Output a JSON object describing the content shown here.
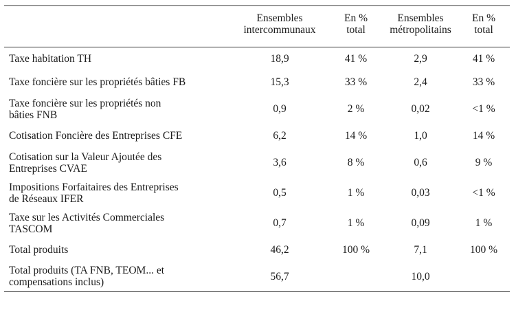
{
  "table": {
    "headers": {
      "col0": "",
      "col1_line1": "Ensembles",
      "col1_line2": "intercommunaux",
      "col2_line1": "En %",
      "col2_line2": "total",
      "col3_line1": "Ensembles",
      "col3_line2": "métropolitains",
      "col4_line1": "En %",
      "col4_line2": "total"
    },
    "rows": [
      {
        "label_line1": "Taxe habitation TH",
        "label_line2": "",
        "interco": "18,9",
        "interco_pct": "41 %",
        "metro": "2,9",
        "metro_pct": "41 %"
      },
      {
        "label_line1": "Taxe foncière sur les propriétés bâties FB",
        "label_line2": "",
        "interco": "15,3",
        "interco_pct": "33 %",
        "metro": "2,4",
        "metro_pct": "33 %"
      },
      {
        "label_line1": "Taxe foncière sur les propriétés non",
        "label_line2": "bâties FNB",
        "interco": "0,9",
        "interco_pct": "2 %",
        "metro": "0,02",
        "metro_pct": "<1 %"
      },
      {
        "label_line1": "Cotisation Foncière des Entreprises CFE",
        "label_line2": "",
        "interco": "6,2",
        "interco_pct": "14 %",
        "metro": "1,0",
        "metro_pct": "14 %"
      },
      {
        "label_line1": "Cotisation sur la Valeur Ajoutée des",
        "label_line2": "Entreprises CVAE",
        "interco": "3,6",
        "interco_pct": "8 %",
        "metro": "0,6",
        "metro_pct": "9 %"
      },
      {
        "label_line1": "Impositions Forfaitaires des Entreprises",
        "label_line2": "de Réseaux IFER",
        "interco": "0,5",
        "interco_pct": "1 %",
        "metro": "0,03",
        "metro_pct": "<1 %"
      },
      {
        "label_line1": "Taxe sur les Activités Commerciales",
        "label_line2": "TASCOM",
        "interco": "0,7",
        "interco_pct": "1 %",
        "metro": "0,09",
        "metro_pct": "1 %"
      },
      {
        "label_line1": "Total produits",
        "label_line2": "",
        "interco": "46,2",
        "interco_pct": "100 %",
        "metro": "7,1",
        "metro_pct": "100 %"
      },
      {
        "label_line1": "Total produits (TA FNB, TEOM... et",
        "label_line2": "compensations inclus)",
        "interco": "56,7",
        "interco_pct": "",
        "metro": "10,0",
        "metro_pct": ""
      }
    ]
  }
}
